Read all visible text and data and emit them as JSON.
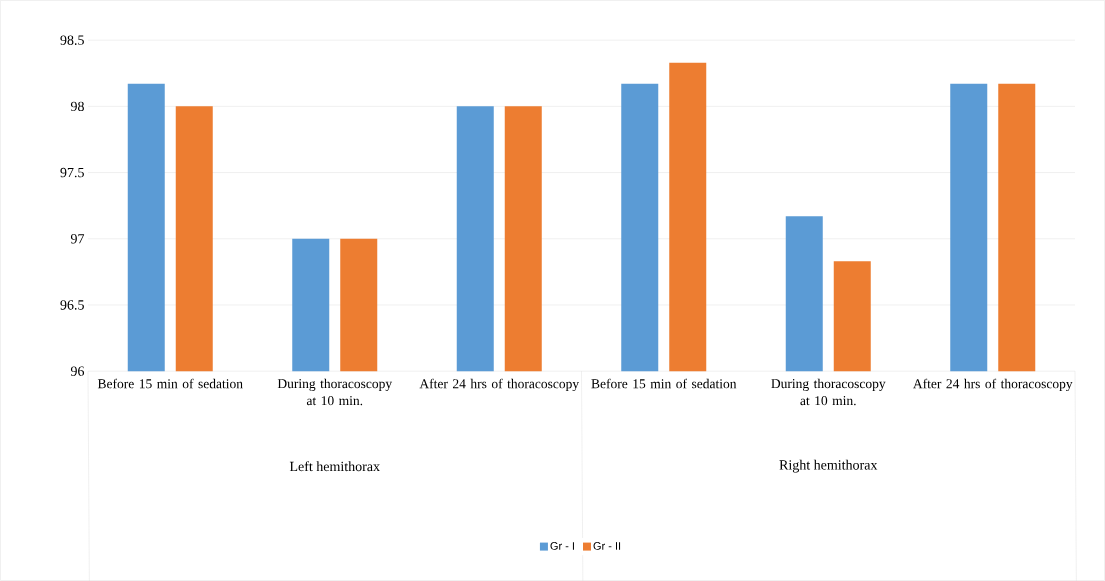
{
  "chart_data": {
    "type": "bar",
    "categories": [
      "Before 15 min of sedation",
      "During thoracoscopy at 10 min.",
      "After 24 hrs of thoracoscopy",
      "Before 15 min of sedation",
      "During thoracoscopy at 10 min.",
      "After 24 hrs of thoracoscopy"
    ],
    "series": [
      {
        "name": "Gr - I",
        "color": "#5b9bd5",
        "values": [
          98.17,
          97,
          98,
          98.17,
          97.17,
          98.17
        ]
      },
      {
        "name": "Gr - II",
        "color": "#ed7d31",
        "values": [
          98,
          97,
          98,
          98.33,
          96.83,
          98.17
        ]
      }
    ],
    "ylim": [
      96,
      98.5
    ],
    "yticks": [
      96,
      96.5,
      97,
      97.5,
      98,
      98.5
    ],
    "grid": "y",
    "legend": "bottom",
    "annotations": [
      "Left hemithorax",
      "Right hemithorax"
    ]
  }
}
